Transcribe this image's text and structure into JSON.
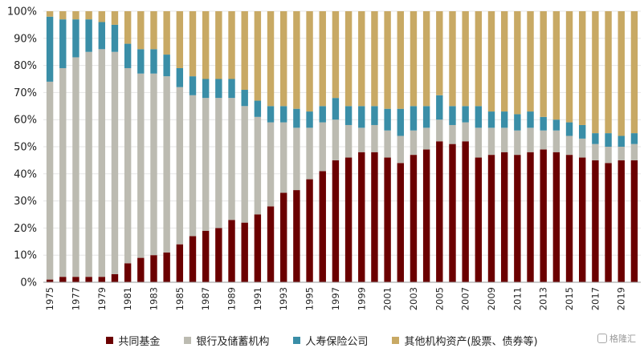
{
  "chart_data": {
    "type": "bar",
    "stacked": true,
    "ylim": [
      0,
      100
    ],
    "y_ticks": [
      "0%",
      "10%",
      "20%",
      "30%",
      "40%",
      "50%",
      "60%",
      "70%",
      "80%",
      "90%",
      "100%"
    ],
    "categories": [
      "1975",
      "1976",
      "1977",
      "1978",
      "1979",
      "1980",
      "1981",
      "1982",
      "1983",
      "1984",
      "1985",
      "1986",
      "1987",
      "1988",
      "1989",
      "1990",
      "1991",
      "1992",
      "1993",
      "1994",
      "1995",
      "1996",
      "1997",
      "1998",
      "1999",
      "2000",
      "2001",
      "2002",
      "2003",
      "2004",
      "2005",
      "2006",
      "2007",
      "2008",
      "2009",
      "2010",
      "2011",
      "2012",
      "2013",
      "2014",
      "2015",
      "2016",
      "2017",
      "2018",
      "2019",
      "2020"
    ],
    "x_tick_labels": [
      "1975",
      "1977",
      "1979",
      "1981",
      "1983",
      "1985",
      "1987",
      "1989",
      "1991",
      "1993",
      "1995",
      "1997",
      "1999",
      "2001",
      "2003",
      "2005",
      "2007",
      "2009",
      "2011",
      "2013",
      "2015",
      "2017",
      "2019"
    ],
    "series": [
      {
        "name": "共同基金",
        "color": "#6b0000",
        "values": [
          1,
          2,
          2,
          2,
          2,
          3,
          7,
          9,
          10,
          11,
          14,
          17,
          19,
          20,
          23,
          22,
          25,
          28,
          33,
          34,
          38,
          41,
          45,
          46,
          48,
          48,
          46,
          44,
          47,
          49,
          52,
          51,
          52,
          46,
          47,
          48,
          47,
          48,
          49,
          48,
          47,
          46,
          45,
          44,
          45,
          45
        ]
      },
      {
        "name": "银行及储蓄机构",
        "color": "#bcbbb1",
        "values": [
          73,
          77,
          81,
          83,
          84,
          82,
          72,
          68,
          67,
          65,
          58,
          52,
          49,
          48,
          45,
          43,
          36,
          31,
          26,
          23,
          19,
          18,
          15,
          12,
          9,
          10,
          10,
          10,
          9,
          8,
          8,
          7,
          7,
          11,
          10,
          9,
          9,
          9,
          7,
          8,
          7,
          7,
          6,
          6,
          5,
          6
        ]
      },
      {
        "name": "人寿保险公司",
        "color": "#3a8ea7",
        "values": [
          24,
          18,
          14,
          12,
          10,
          10,
          9,
          9,
          9,
          8,
          7,
          7,
          7,
          7,
          7,
          6,
          6,
          6,
          6,
          7,
          6,
          6,
          8,
          7,
          8,
          7,
          8,
          10,
          9,
          8,
          9,
          7,
          6,
          8,
          6,
          6,
          6,
          6,
          5,
          4,
          5,
          5,
          4,
          5,
          4,
          4
        ]
      },
      {
        "name": "其他机构资产(股票、债券等)",
        "color": "#c8a964",
        "values": [
          2,
          3,
          3,
          3,
          4,
          5,
          12,
          14,
          14,
          16,
          21,
          24,
          25,
          25,
          25,
          29,
          33,
          35,
          35,
          36,
          37,
          35,
          32,
          35,
          35,
          35,
          36,
          36,
          35,
          35,
          31,
          35,
          35,
          35,
          37,
          37,
          38,
          37,
          39,
          40,
          41,
          42,
          45,
          45,
          46,
          45
        ]
      }
    ],
    "legend_position": "bottom"
  },
  "watermark": "格隆汇"
}
